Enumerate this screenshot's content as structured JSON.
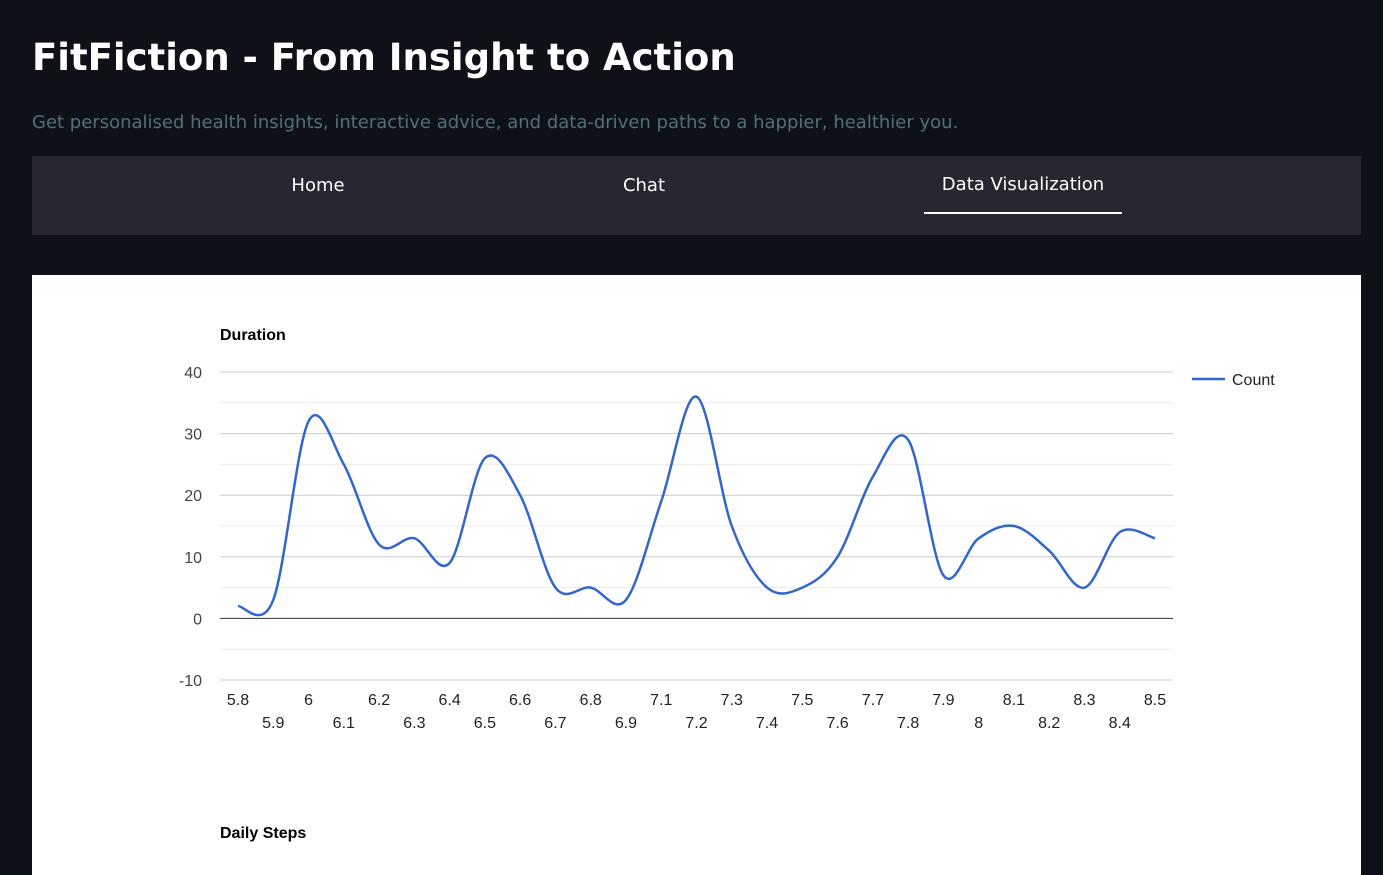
{
  "header": {
    "title": "FitFiction - From Insight to Action",
    "subtitle": "Get personalised health insights, interactive advice, and data-driven paths to a happier, healthier you."
  },
  "nav": {
    "tabs": [
      {
        "label": "Home"
      },
      {
        "label": "Chat"
      },
      {
        "label": "Data Visualization",
        "active": true
      }
    ]
  },
  "charts": {
    "duration_title": "Duration",
    "steps_title": "Daily Steps"
  },
  "colors": {
    "background": "#0e1117",
    "nav_background": "#262730",
    "subtitle": "#51707a",
    "series": "#3366cc"
  },
  "chart_data": [
    {
      "type": "line",
      "title": "Duration",
      "xlabel": "",
      "ylabel": "",
      "ylim": [
        -10,
        40
      ],
      "yticks": [
        -10,
        0,
        10,
        20,
        30,
        40
      ],
      "legend_position": "right",
      "grid": true,
      "smooth": true,
      "categories": [
        "5.8",
        "5.9",
        "6",
        "6.1",
        "6.2",
        "6.3",
        "6.4",
        "6.5",
        "6.6",
        "6.7",
        "6.8",
        "6.9",
        "7.1",
        "7.2",
        "7.3",
        "7.4",
        "7.5",
        "7.6",
        "7.7",
        "7.8",
        "7.9",
        "8",
        "8.1",
        "8.2",
        "8.3",
        "8.4",
        "8.5"
      ],
      "series": [
        {
          "name": "Count",
          "color": "#3366cc",
          "values": [
            2,
            3,
            32,
            25,
            12,
            13,
            9,
            26,
            20,
            5,
            5,
            3,
            19,
            36,
            15,
            5,
            5,
            10,
            23,
            29,
            7,
            13,
            15,
            11,
            5,
            14,
            13
          ]
        }
      ]
    },
    {
      "type": "line",
      "title": "Daily Steps"
    }
  ]
}
